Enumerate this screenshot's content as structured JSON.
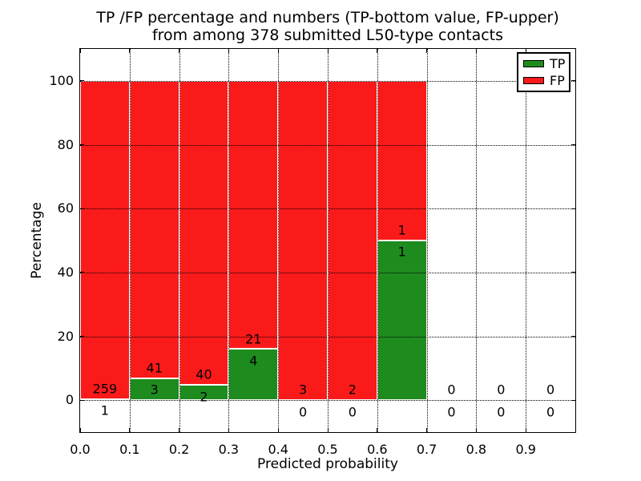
{
  "chart_data": {
    "type": "bar",
    "stacked": true,
    "title_line1": "TP /FP percentage and numbers (TP-bottom value, FP-upper)",
    "title_line2": "from among 378 submitted L50-type contacts",
    "xlabel": "Predicted probability",
    "ylabel": "Percentage",
    "total_submitted": 378,
    "xlim": [
      0.0,
      1.0
    ],
    "ylim": [
      -10,
      110
    ],
    "x_tick_labels": [
      "0.0",
      "0.1",
      "0.2",
      "0.3",
      "0.4",
      "0.5",
      "0.6",
      "0.7",
      "0.8",
      "0.9"
    ],
    "y_tick_labels": [
      "0",
      "20",
      "40",
      "60",
      "80",
      "100"
    ],
    "grid_style": "dotted",
    "bar_semantics": "Each 0.1-wide bin is scaled to 100%: green bottom segment = TP share, red upper segment = FP share; numbers show raw TP (lower label) and FP (upper label) counts.",
    "legend": [
      {
        "label": "TP",
        "color": "#1e8b1e"
      },
      {
        "label": "FP",
        "color": "#fb1a1a"
      }
    ],
    "bins": [
      {
        "x_range": [
          0.0,
          0.1
        ],
        "tp": 1,
        "fp": 259
      },
      {
        "x_range": [
          0.1,
          0.2
        ],
        "tp": 3,
        "fp": 41
      },
      {
        "x_range": [
          0.2,
          0.3
        ],
        "tp": 2,
        "fp": 40
      },
      {
        "x_range": [
          0.3,
          0.4
        ],
        "tp": 4,
        "fp": 21
      },
      {
        "x_range": [
          0.4,
          0.5
        ],
        "tp": 0,
        "fp": 3
      },
      {
        "x_range": [
          0.5,
          0.6
        ],
        "tp": 0,
        "fp": 2
      },
      {
        "x_range": [
          0.6,
          0.7
        ],
        "tp": 1,
        "fp": 1
      },
      {
        "x_range": [
          0.7,
          0.8
        ],
        "tp": 0,
        "fp": 0
      },
      {
        "x_range": [
          0.8,
          0.9
        ],
        "tp": 0,
        "fp": 0
      },
      {
        "x_range": [
          0.9,
          1.0
        ],
        "tp": 0,
        "fp": 0
      }
    ]
  }
}
